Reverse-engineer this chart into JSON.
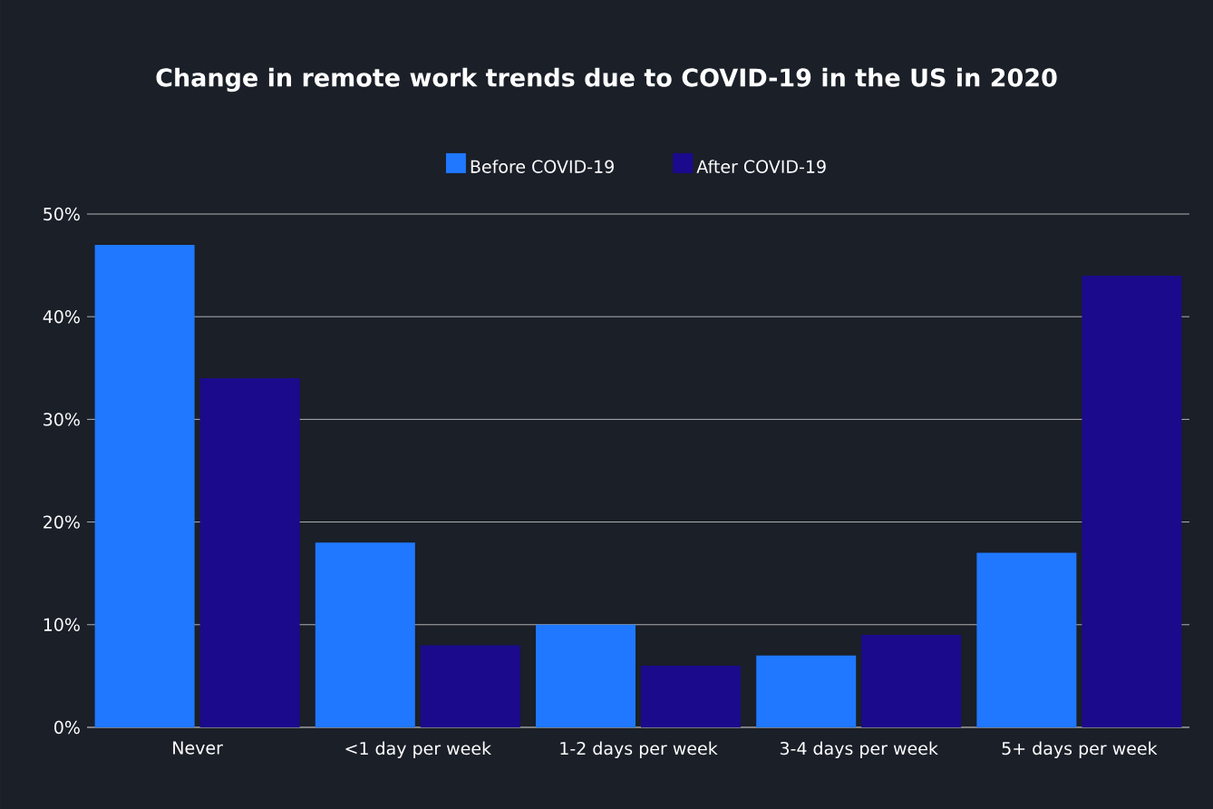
{
  "chart_data": {
    "type": "bar",
    "title": "Change in remote work trends due to COVID-19 in the US in 2020",
    "categories": [
      "Never",
      "<1 day per week",
      "1-2 days per week",
      "3-4 days per week",
      "5+ days per week"
    ],
    "series": [
      {
        "name": "Before COVID-19",
        "color": "#1f78ff",
        "values": [
          47,
          18,
          10,
          7,
          17
        ]
      },
      {
        "name": "After COVID-19",
        "color": "#1b0a8c",
        "values": [
          34,
          8,
          6,
          9,
          44
        ]
      }
    ],
    "ylim": [
      0,
      50
    ],
    "yticks": [
      {
        "value": 0,
        "label": "0%"
      },
      {
        "value": 10,
        "label": "10%"
      },
      {
        "value": 20,
        "label": "20%"
      },
      {
        "value": 30,
        "label": "30%"
      },
      {
        "value": 40,
        "label": "40%"
      },
      {
        "value": 50,
        "label": "50%"
      }
    ],
    "grid": "y",
    "legend": "top"
  }
}
